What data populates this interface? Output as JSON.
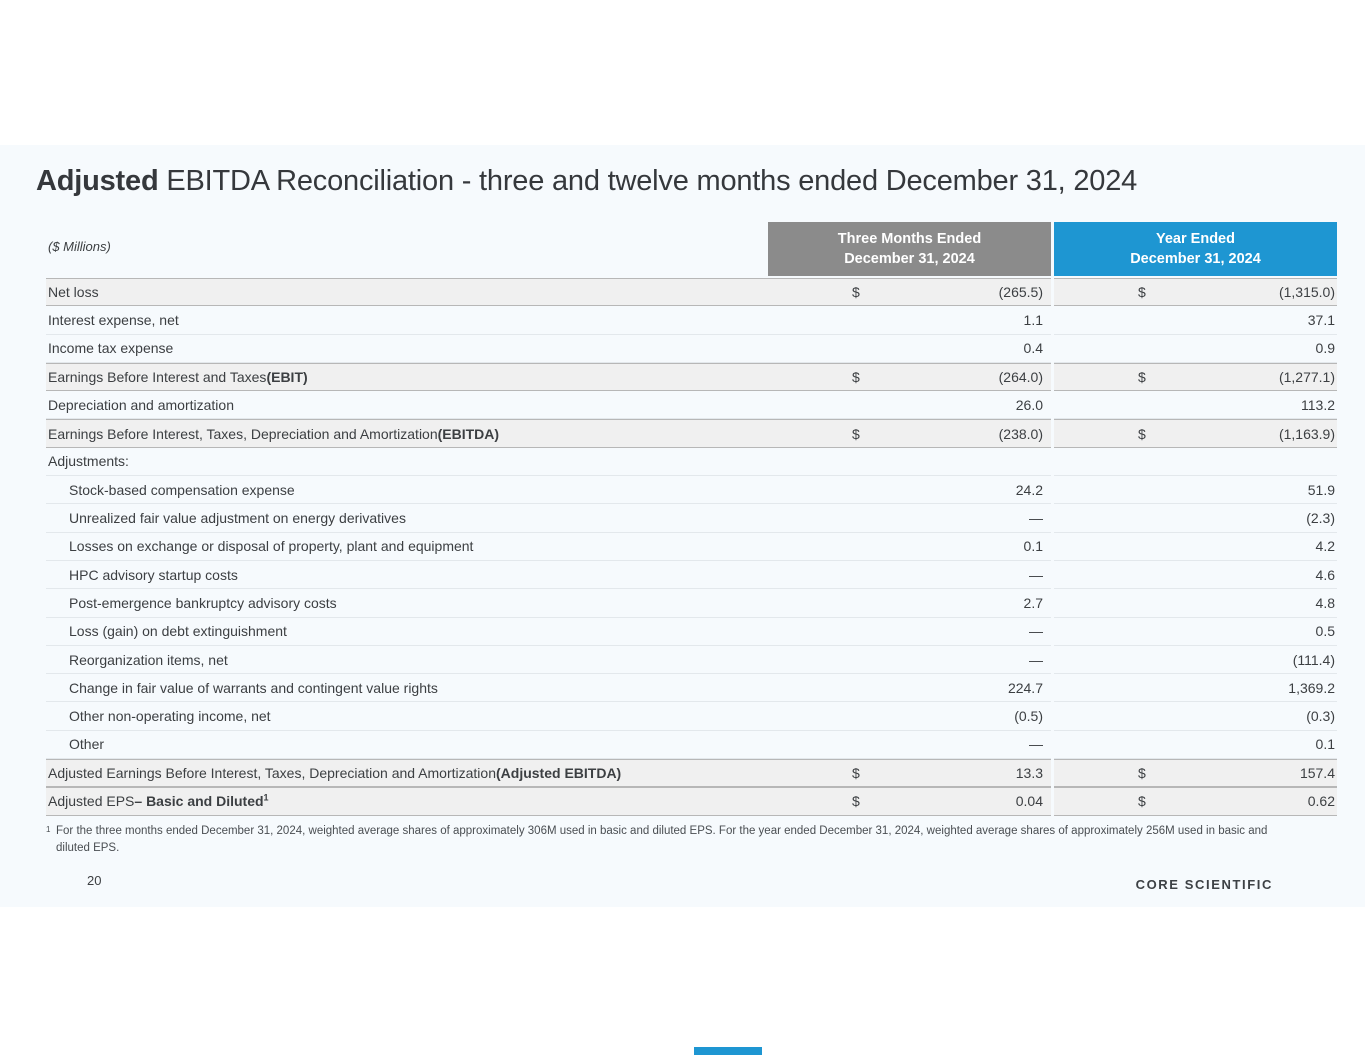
{
  "colors": {
    "header_gray": "#8b8b8b",
    "header_blue": "#1e96d2",
    "slide_background": "#f6fafd",
    "shaded_row": "#f0f0f0",
    "accent_blue": "#1e96d2"
  },
  "slide": {
    "title": {
      "bold": "Adjusted",
      "rest": " EBITDA Reconciliation - three and twelve months ended December 31, 2024"
    },
    "units_label": "($ Millions)",
    "page_number": "20",
    "logo_text": "CORE SCIENTIFIC",
    "footnote": {
      "marker": "1",
      "text": "For the three months ended December 31, 2024, weighted average shares of approximately 306M used in basic and diluted EPS. For the year ended December 31, 2024, weighted average shares of approximately 256M used in basic and diluted EPS."
    }
  },
  "table": {
    "column_headers": [
      {
        "line1": "Three Months Ended",
        "line2": "December 31, 2024",
        "color": "#8b8b8b"
      },
      {
        "line1": "Year Ended",
        "line2": "December 31, 2024",
        "color": "#1e96d2"
      }
    ],
    "rows": [
      {
        "label": "Net loss",
        "shaded": true,
        "d1": "$",
        "v1": "(265.5)",
        "d2": "$",
        "v2": "(1,315.0)"
      },
      {
        "label": "Interest expense, net",
        "v1": "1.1",
        "v2": "37.1"
      },
      {
        "label": "Income tax expense",
        "v1": "0.4",
        "v2": "0.9"
      },
      {
        "label": "Earnings Before Interest and Taxes ",
        "label_bold": "(EBIT)",
        "shaded": true,
        "d1": "$",
        "v1": "(264.0)",
        "d2": "$",
        "v2": "(1,277.1)"
      },
      {
        "label": "Depreciation and amortization",
        "v1": "26.0",
        "v2": "113.2"
      },
      {
        "label": "Earnings Before Interest, Taxes, Depreciation and Amortization ",
        "label_bold": "(EBITDA)",
        "shaded": true,
        "d1": "$",
        "v1": "(238.0)",
        "d2": "$",
        "v2": "(1,163.9)"
      },
      {
        "label": "Adjustments:",
        "v1": "",
        "v2": ""
      },
      {
        "label": "Stock-based compensation expense",
        "indent": true,
        "v1": "24.2",
        "v2": "51.9"
      },
      {
        "label": "Unrealized fair value adjustment on energy derivatives",
        "indent": true,
        "v1": "—",
        "v2": "(2.3)"
      },
      {
        "label": "Losses on exchange or disposal of property, plant and equipment",
        "indent": true,
        "v1": "0.1",
        "v2": "4.2"
      },
      {
        "label": "HPC advisory startup costs",
        "indent": true,
        "v1": "—",
        "v2": "4.6"
      },
      {
        "label": "Post-emergence bankruptcy advisory costs",
        "indent": true,
        "v1": "2.7",
        "v2": "4.8"
      },
      {
        "label": "Loss (gain) on debt extinguishment",
        "indent": true,
        "v1": "—",
        "v2": "0.5"
      },
      {
        "label": "Reorganization items, net",
        "indent": true,
        "v1": "—",
        "v2": "(111.4)"
      },
      {
        "label": "Change in fair value of warrants and contingent value rights",
        "indent": true,
        "v1": "224.7",
        "v2": "1,369.2"
      },
      {
        "label": "Other non-operating income, net",
        "indent": true,
        "v1": "(0.5)",
        "v2": "(0.3)"
      },
      {
        "label": "Other",
        "indent": true,
        "v1": "—",
        "v2": "0.1"
      },
      {
        "label": "Adjusted Earnings Before Interest, Taxes, Depreciation and Amortization ",
        "label_bold": "(Adjusted EBITDA)",
        "shaded": true,
        "d1": "$",
        "v1": "13.3",
        "d2": "$",
        "v2": "157.4"
      },
      {
        "label": "Adjusted EPS ",
        "label_bold": "– Basic and Diluted",
        "sup": "1",
        "shaded": true,
        "d1": "$",
        "v1": "0.04",
        "d2": "$",
        "v2": "0.62"
      }
    ]
  }
}
